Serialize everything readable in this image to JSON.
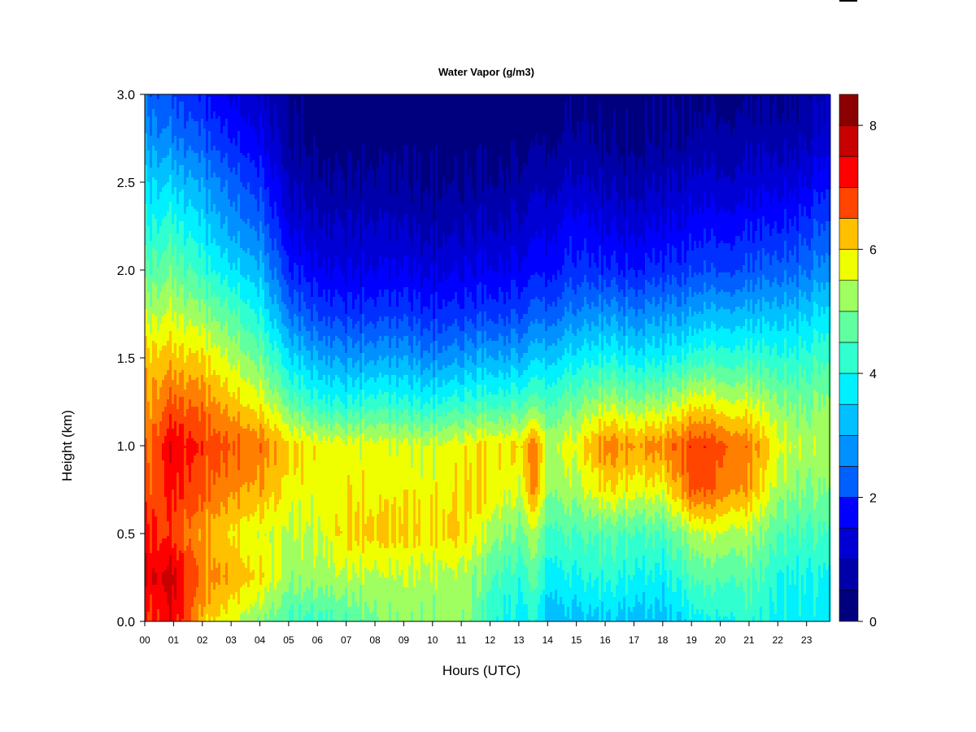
{
  "chart_data": {
    "type": "heatmap",
    "title": "Water Vapor (g/m3)",
    "xlabel": "Hours (UTC)",
    "ylabel": "Height (km)",
    "xlim": [
      0,
      23.8
    ],
    "ylim": [
      0,
      3.0
    ],
    "x_ticks": [
      "00",
      "01",
      "02",
      "03",
      "04",
      "05",
      "06",
      "07",
      "08",
      "09",
      "10",
      "11",
      "12",
      "13",
      "14",
      "15",
      "16",
      "17",
      "18",
      "19",
      "20",
      "21",
      "22",
      "23"
    ],
    "y_ticks": [
      "0.0",
      "0.5",
      "1.0",
      "1.5",
      "2.0",
      "2.5",
      "3.0"
    ],
    "colorbar": {
      "range": [
        0,
        8.5
      ],
      "ticks": [
        "0",
        "2",
        "4",
        "6",
        "8"
      ],
      "levels": 17,
      "colors": [
        "#00007F",
        "#0000AA",
        "#0000D4",
        "#0000FF",
        "#0030FF",
        "#0060FF",
        "#0090FF",
        "#00C0FF",
        "#00F0FF",
        "#30FFCF",
        "#60FF9F",
        "#A0FF60",
        "#F0FF00",
        "#FFC000",
        "#FF8000",
        "#FF4500",
        "#FF0000",
        "#C80000",
        "#8B0000"
      ]
    },
    "x": [
      0,
      1,
      2,
      3,
      4,
      5,
      6,
      7,
      8,
      9,
      10,
      11,
      12,
      13,
      13.5,
      14,
      15,
      16,
      17,
      18,
      19,
      20,
      21,
      22,
      23,
      23.8
    ],
    "y": [
      0.0,
      0.25,
      0.5,
      0.75,
      1.0,
      1.25,
      1.5,
      1.75,
      2.0,
      2.25,
      2.5,
      2.75,
      3.0
    ],
    "z": [
      [
        7.0,
        7.5,
        7.3,
        6.8,
        6.5,
        6.2,
        6.0,
        5.2,
        4.6,
        4.0,
        3.6,
        3.0,
        2.5
      ],
      [
        7.5,
        7.8,
        7.0,
        7.3,
        7.6,
        6.8,
        6.0,
        5.4,
        4.8,
        4.2,
        3.5,
        2.7,
        2.2
      ],
      [
        6.0,
        6.5,
        6.2,
        6.8,
        7.0,
        6.5,
        5.8,
        5.0,
        4.2,
        3.6,
        3.0,
        2.3,
        1.7
      ],
      [
        5.5,
        6.2,
        5.8,
        6.4,
        6.8,
        6.0,
        5.3,
        4.6,
        3.7,
        3.0,
        2.5,
        1.8,
        1.3
      ],
      [
        5.0,
        5.8,
        5.5,
        6.2,
        6.6,
        5.6,
        4.8,
        4.0,
        3.3,
        2.6,
        2.0,
        1.4,
        1.0
      ],
      [
        4.3,
        5.0,
        5.2,
        5.6,
        5.8,
        4.6,
        3.6,
        2.6,
        1.8,
        1.2,
        0.8,
        0.4,
        0.3
      ],
      [
        4.4,
        5.2,
        5.4,
        5.6,
        5.7,
        4.2,
        3.2,
        2.2,
        1.5,
        1.0,
        0.6,
        0.3,
        0.2
      ],
      [
        4.5,
        5.3,
        5.9,
        5.7,
        5.6,
        4.0,
        3.0,
        2.0,
        1.3,
        0.9,
        0.5,
        0.2,
        0.1
      ],
      [
        4.8,
        5.2,
        5.9,
        5.6,
        5.5,
        4.2,
        3.0,
        2.0,
        1.3,
        0.9,
        0.5,
        0.2,
        0.1
      ],
      [
        5.0,
        5.2,
        5.8,
        5.6,
        5.4,
        4.0,
        3.0,
        2.0,
        1.3,
        0.8,
        0.4,
        0.2,
        0.1
      ],
      [
        5.0,
        5.2,
        5.8,
        5.6,
        5.4,
        4.0,
        2.8,
        1.9,
        1.2,
        0.7,
        0.4,
        0.2,
        0.1
      ],
      [
        5.1,
        5.2,
        5.9,
        5.8,
        5.6,
        4.2,
        3.0,
        2.0,
        1.3,
        0.8,
        0.4,
        0.2,
        0.1
      ],
      [
        4.2,
        4.6,
        5.2,
        5.8,
        5.8,
        4.3,
        3.2,
        2.1,
        1.4,
        0.9,
        0.5,
        0.2,
        0.1
      ],
      [
        3.8,
        4.2,
        4.8,
        5.4,
        5.8,
        4.4,
        3.2,
        2.2,
        1.5,
        1.0,
        0.6,
        0.3,
        0.1
      ],
      [
        4.0,
        4.6,
        5.2,
        6.4,
        6.5,
        4.6,
        3.4,
        2.4,
        1.6,
        1.1,
        0.7,
        0.3,
        0.1
      ],
      [
        3.3,
        3.8,
        4.4,
        5.0,
        5.3,
        4.4,
        3.4,
        2.4,
        1.6,
        1.2,
        0.7,
        0.3,
        0.2
      ],
      [
        3.4,
        4.0,
        4.5,
        5.2,
        5.6,
        4.8,
        3.8,
        2.8,
        2.0,
        1.6,
        1.0,
        0.6,
        0.3
      ],
      [
        3.5,
        4.2,
        4.6,
        5.8,
        6.5,
        5.2,
        4.0,
        3.0,
        1.9,
        1.3,
        0.8,
        0.4,
        0.2
      ],
      [
        3.4,
        4.0,
        4.5,
        5.6,
        6.3,
        5.0,
        3.8,
        2.8,
        1.8,
        1.2,
        0.7,
        0.3,
        0.2
      ],
      [
        3.3,
        3.8,
        4.4,
        5.5,
        6.4,
        5.0,
        3.8,
        2.9,
        1.9,
        1.3,
        0.8,
        0.4,
        0.3
      ],
      [
        3.8,
        4.5,
        5.2,
        6.8,
        7.0,
        5.6,
        4.2,
        3.1,
        2.1,
        1.5,
        1.0,
        0.5,
        0.3
      ],
      [
        4.0,
        4.6,
        5.4,
        6.6,
        6.9,
        5.5,
        4.3,
        3.3,
        2.2,
        1.6,
        1.0,
        0.6,
        0.3
      ],
      [
        4.2,
        4.6,
        5.2,
        6.2,
        6.5,
        5.4,
        4.3,
        3.3,
        2.3,
        1.7,
        1.1,
        0.7,
        0.4
      ],
      [
        3.9,
        4.1,
        4.6,
        5.2,
        5.6,
        5.0,
        4.2,
        3.4,
        2.5,
        1.8,
        1.2,
        0.7,
        0.4
      ],
      [
        3.8,
        4.0,
        4.4,
        4.9,
        5.2,
        4.8,
        4.2,
        3.5,
        2.6,
        2.0,
        1.3,
        0.8,
        0.5
      ],
      [
        3.8,
        4.0,
        4.5,
        5.0,
        5.3,
        5.1,
        4.5,
        3.8,
        3.0,
        2.4,
        1.8,
        1.2,
        1.0
      ]
    ]
  }
}
